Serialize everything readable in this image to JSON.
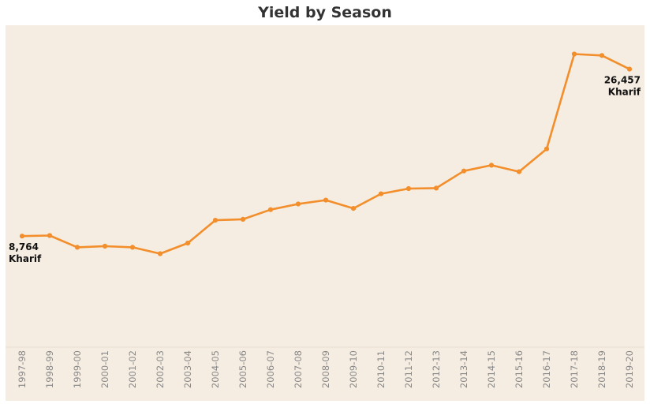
{
  "chart_data": {
    "type": "line",
    "title": "Yield by Season",
    "xlabel": "",
    "ylabel": "",
    "categories": [
      "1997-98",
      "1998-99",
      "1999-00",
      "2000-01",
      "2001-02",
      "2002-03",
      "2003-04",
      "2004-05",
      "2005-06",
      "2006-07",
      "2007-08",
      "2008-09",
      "2009-10",
      "2010-11",
      "2011-12",
      "2012-13",
      "2013-14",
      "2014-15",
      "2015-16",
      "2016-17",
      "2017-18",
      "2018-19",
      "2019-20"
    ],
    "series": [
      {
        "name": "Kharif",
        "values": [
          8764,
          8830,
          7580,
          7700,
          7580,
          6900,
          8020,
          10450,
          10550,
          11570,
          12170,
          12580,
          11700,
          13250,
          13800,
          13850,
          15660,
          16270,
          15590,
          18000,
          28050,
          27900,
          26457
        ]
      }
    ],
    "annotations": [
      {
        "value_label": "8,764",
        "series_label": "Kharif",
        "category": "1997-98"
      },
      {
        "value_label": "26,457",
        "series_label": "Kharif",
        "category": "2019-20"
      }
    ],
    "ylim": [
      -3000,
      31100
    ],
    "grid": false,
    "legend": "none",
    "colors": {
      "line": "#f28e2b",
      "background": "#f6ede2",
      "tick": "#888888",
      "label": "#111111"
    }
  }
}
